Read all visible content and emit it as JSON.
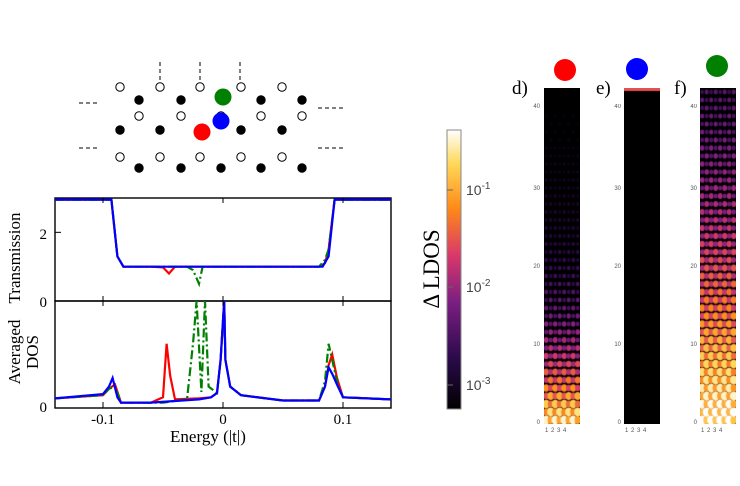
{
  "chart_data": [
    {
      "type": "line",
      "panel": "transmission",
      "ylabel": "Transmission",
      "xlim": [
        -0.14,
        0.14
      ],
      "ylim": [
        0,
        3
      ],
      "yticks": [
        "0",
        "2"
      ],
      "grid": false,
      "series": [
        {
          "color": "#ff0000",
          "style": "solid",
          "x": [
            -0.14,
            -0.093,
            -0.088,
            -0.083,
            -0.06,
            -0.05,
            -0.045,
            -0.04,
            -0.03,
            0,
            0.08,
            0.085,
            0.088,
            0.093,
            0.14
          ],
          "y": [
            2.95,
            2.95,
            1.3,
            1.0,
            1.0,
            0.98,
            0.8,
            1.0,
            1.0,
            1.0,
            1.0,
            1.1,
            1.5,
            2.95,
            2.95
          ]
        },
        {
          "color": "#008000",
          "style": "dashdot",
          "x": [
            -0.14,
            -0.093,
            -0.088,
            -0.083,
            -0.03,
            -0.025,
            -0.02,
            -0.017,
            -0.014,
            0,
            0.08,
            0.085,
            0.088,
            0.093,
            0.14
          ],
          "y": [
            2.95,
            2.95,
            1.3,
            1.0,
            1.0,
            0.9,
            0.5,
            1.0,
            1.0,
            1.0,
            1.0,
            1.2,
            1.5,
            2.95,
            2.95
          ]
        },
        {
          "color": "#0000ff",
          "style": "solid",
          "x": [
            -0.14,
            -0.093,
            -0.088,
            -0.083,
            0.083,
            0.088,
            0.093,
            0.14
          ],
          "y": [
            2.95,
            2.95,
            1.3,
            1.0,
            1.0,
            1.3,
            2.95,
            2.95
          ]
        }
      ]
    },
    {
      "type": "line",
      "panel": "averaged_dos",
      "ylabel": "Averaged DOS",
      "xlabel": "Energy (|t|)",
      "xlim": [
        -0.14,
        0.14
      ],
      "ylim": [
        0,
        1
      ],
      "xticks": [
        "-0.1",
        "0",
        "0.1"
      ],
      "yticks": [
        "0"
      ],
      "grid": false,
      "series": [
        {
          "color": "#ff0000",
          "style": "solid",
          "x": [
            -0.14,
            -0.1,
            -0.095,
            -0.09,
            -0.085,
            -0.06,
            -0.05,
            -0.047,
            -0.044,
            -0.04,
            -0.02,
            -0.01,
            -0.005,
            -0.002,
            0.001,
            0.002,
            0.006,
            0.015,
            0.05,
            0.08,
            0.085,
            0.088,
            0.091,
            0.095,
            0.1,
            0.14
          ],
          "y": [
            0.09,
            0.12,
            0.18,
            0.22,
            0.05,
            0.05,
            0.1,
            0.6,
            0.3,
            0.08,
            0.09,
            0.1,
            0.14,
            0.45,
            1.0,
            0.45,
            0.2,
            0.12,
            0.07,
            0.07,
            0.2,
            0.4,
            0.5,
            0.28,
            0.1,
            0.08
          ]
        },
        {
          "color": "#008000",
          "style": "dashdot",
          "x": [
            -0.14,
            -0.1,
            -0.095,
            -0.09,
            -0.085,
            -0.05,
            -0.03,
            -0.025,
            -0.022,
            -0.018,
            -0.015,
            -0.012,
            -0.005,
            -0.002,
            0.001,
            0.002,
            0.006,
            0.015,
            0.05,
            0.08,
            0.085,
            0.088,
            0.091,
            0.095,
            0.1,
            0.14
          ],
          "y": [
            0.09,
            0.12,
            0.18,
            0.2,
            0.05,
            0.05,
            0.08,
            0.6,
            1.0,
            0.15,
            1.0,
            0.2,
            0.14,
            0.45,
            1.0,
            0.45,
            0.2,
            0.12,
            0.07,
            0.07,
            0.25,
            0.6,
            0.45,
            0.25,
            0.1,
            0.08
          ]
        },
        {
          "color": "#0000ff",
          "style": "solid",
          "x": [
            -0.14,
            -0.1,
            -0.095,
            -0.092,
            -0.088,
            -0.085,
            -0.06,
            -0.02,
            -0.01,
            -0.005,
            -0.002,
            0.001,
            0.002,
            0.006,
            0.015,
            0.05,
            0.08,
            0.085,
            0.088,
            0.091,
            0.095,
            0.1,
            0.14
          ],
          "y": [
            0.09,
            0.13,
            0.2,
            0.28,
            0.1,
            0.05,
            0.05,
            0.08,
            0.1,
            0.14,
            0.45,
            1.0,
            0.45,
            0.2,
            0.12,
            0.07,
            0.07,
            0.2,
            0.38,
            0.32,
            0.22,
            0.1,
            0.08
          ]
        }
      ]
    },
    {
      "type": "heatmap",
      "colorbar_label": "Δ LDOS",
      "colorbar_ticks": [
        "10",
        "10",
        "10"
      ],
      "colorbar_exponents": [
        "-1",
        "-2",
        "-3"
      ],
      "panels": [
        {
          "label": "d)",
          "dot_color": "#ff0000",
          "yticks": [
            "40",
            "30",
            "20",
            "10",
            "0"
          ],
          "xticks": "1 2 3 4",
          "decay_rows": 12
        },
        {
          "label": "e)",
          "dot_color": "#0000ff",
          "yticks": [
            "40",
            "30",
            "20",
            "10",
            "0"
          ],
          "xticks": "1 2 3 4",
          "decay_rows": 0
        },
        {
          "label": "f)",
          "dot_color": "#008000",
          "yticks": [
            "40",
            "30",
            "20",
            "10",
            "0"
          ],
          "xticks": "1 2 3 4",
          "decay_rows": 30
        }
      ]
    }
  ],
  "lattice": {
    "filled_color": "#000000",
    "empty_color": "#ffffff",
    "markers": [
      {
        "color": "#008000",
        "name": "green-site"
      },
      {
        "color": "#0000ff",
        "name": "blue-site"
      },
      {
        "color": "#ff0000",
        "name": "red-site"
      }
    ]
  }
}
